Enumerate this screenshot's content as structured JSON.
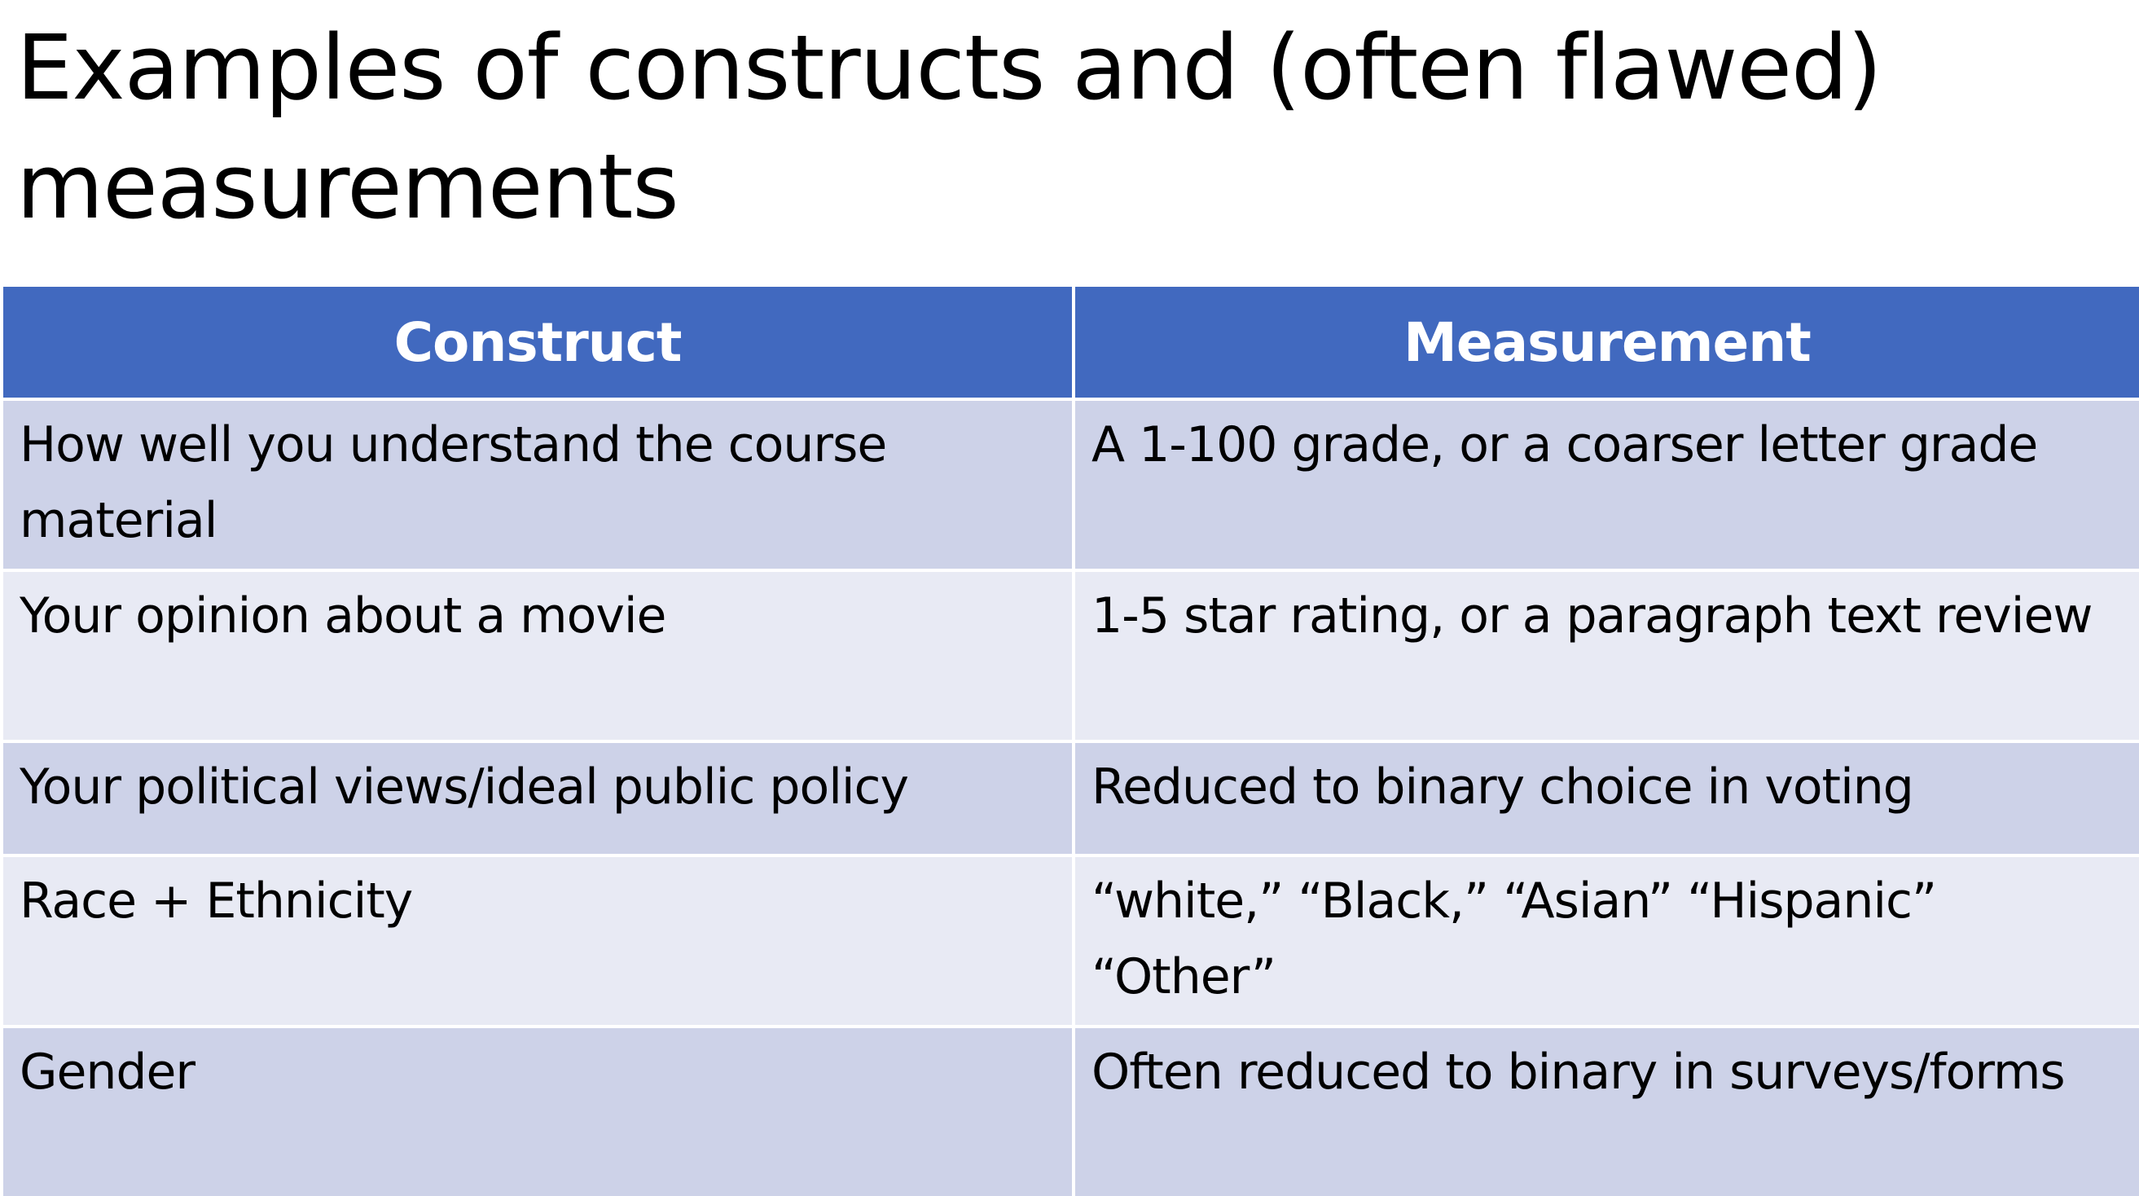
{
  "title": "Examples of constructs and (often flawed) measurements",
  "table": {
    "headers": [
      "Construct",
      "Measurement"
    ],
    "rows": [
      {
        "construct": "How well you understand the course material",
        "measurement": "A 1-100 grade, or a coarser letter grade"
      },
      {
        "construct": "Your opinion about a movie",
        "measurement": "1-5 star rating, or a paragraph text review"
      },
      {
        "construct": "Your political views/ideal public policy",
        "measurement": "Reduced to binary choice in voting"
      },
      {
        "construct": "Race + Ethnicity",
        "measurement": "“white,” “Black,” “Asian” “Hispanic” “Other”"
      },
      {
        "construct": "Gender",
        "measurement": "Often reduced to binary in surveys/forms"
      }
    ]
  },
  "colors": {
    "header_bg": "#4169bf",
    "row_dark": "#cdd2e8",
    "row_light": "#e8eaf4"
  }
}
